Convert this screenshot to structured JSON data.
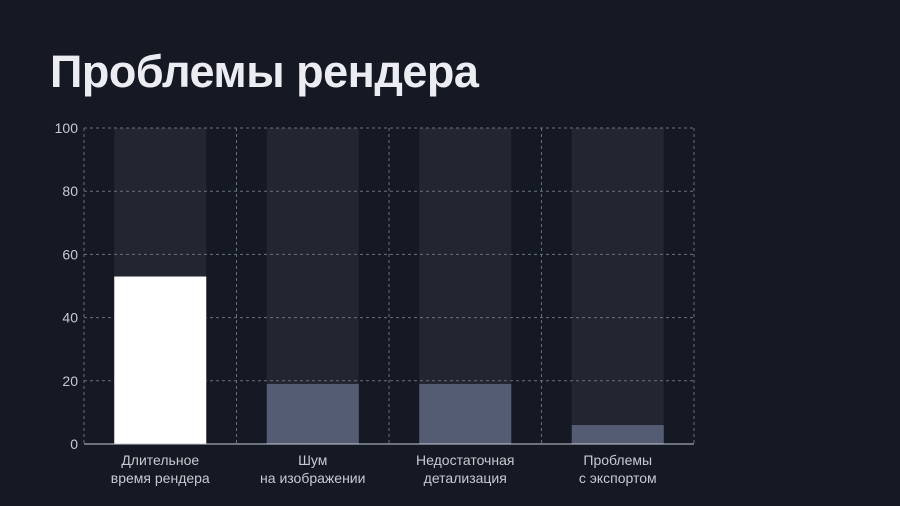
{
  "title": "Проблемы рендера",
  "colors": {
    "background": "#151923",
    "track": "#232631",
    "highlight": "#ffffff",
    "bar": "#545c74",
    "grid": "#6b7080",
    "text": "#c7cad3"
  },
  "chart_data": {
    "type": "bar",
    "categories": [
      [
        "Длительное",
        "время рендера"
      ],
      [
        "Шум",
        "на изображении"
      ],
      [
        "Недостаточная",
        "детализация"
      ],
      [
        "Проблемы",
        "с экспортом"
      ]
    ],
    "values": [
      53,
      19,
      19,
      6
    ],
    "highlight_index": 0,
    "ylim": [
      0,
      100
    ],
    "yticks": [
      "0",
      "20",
      "40",
      "60",
      "80",
      "100"
    ],
    "grid": true,
    "xlabel": "",
    "ylabel": ""
  }
}
